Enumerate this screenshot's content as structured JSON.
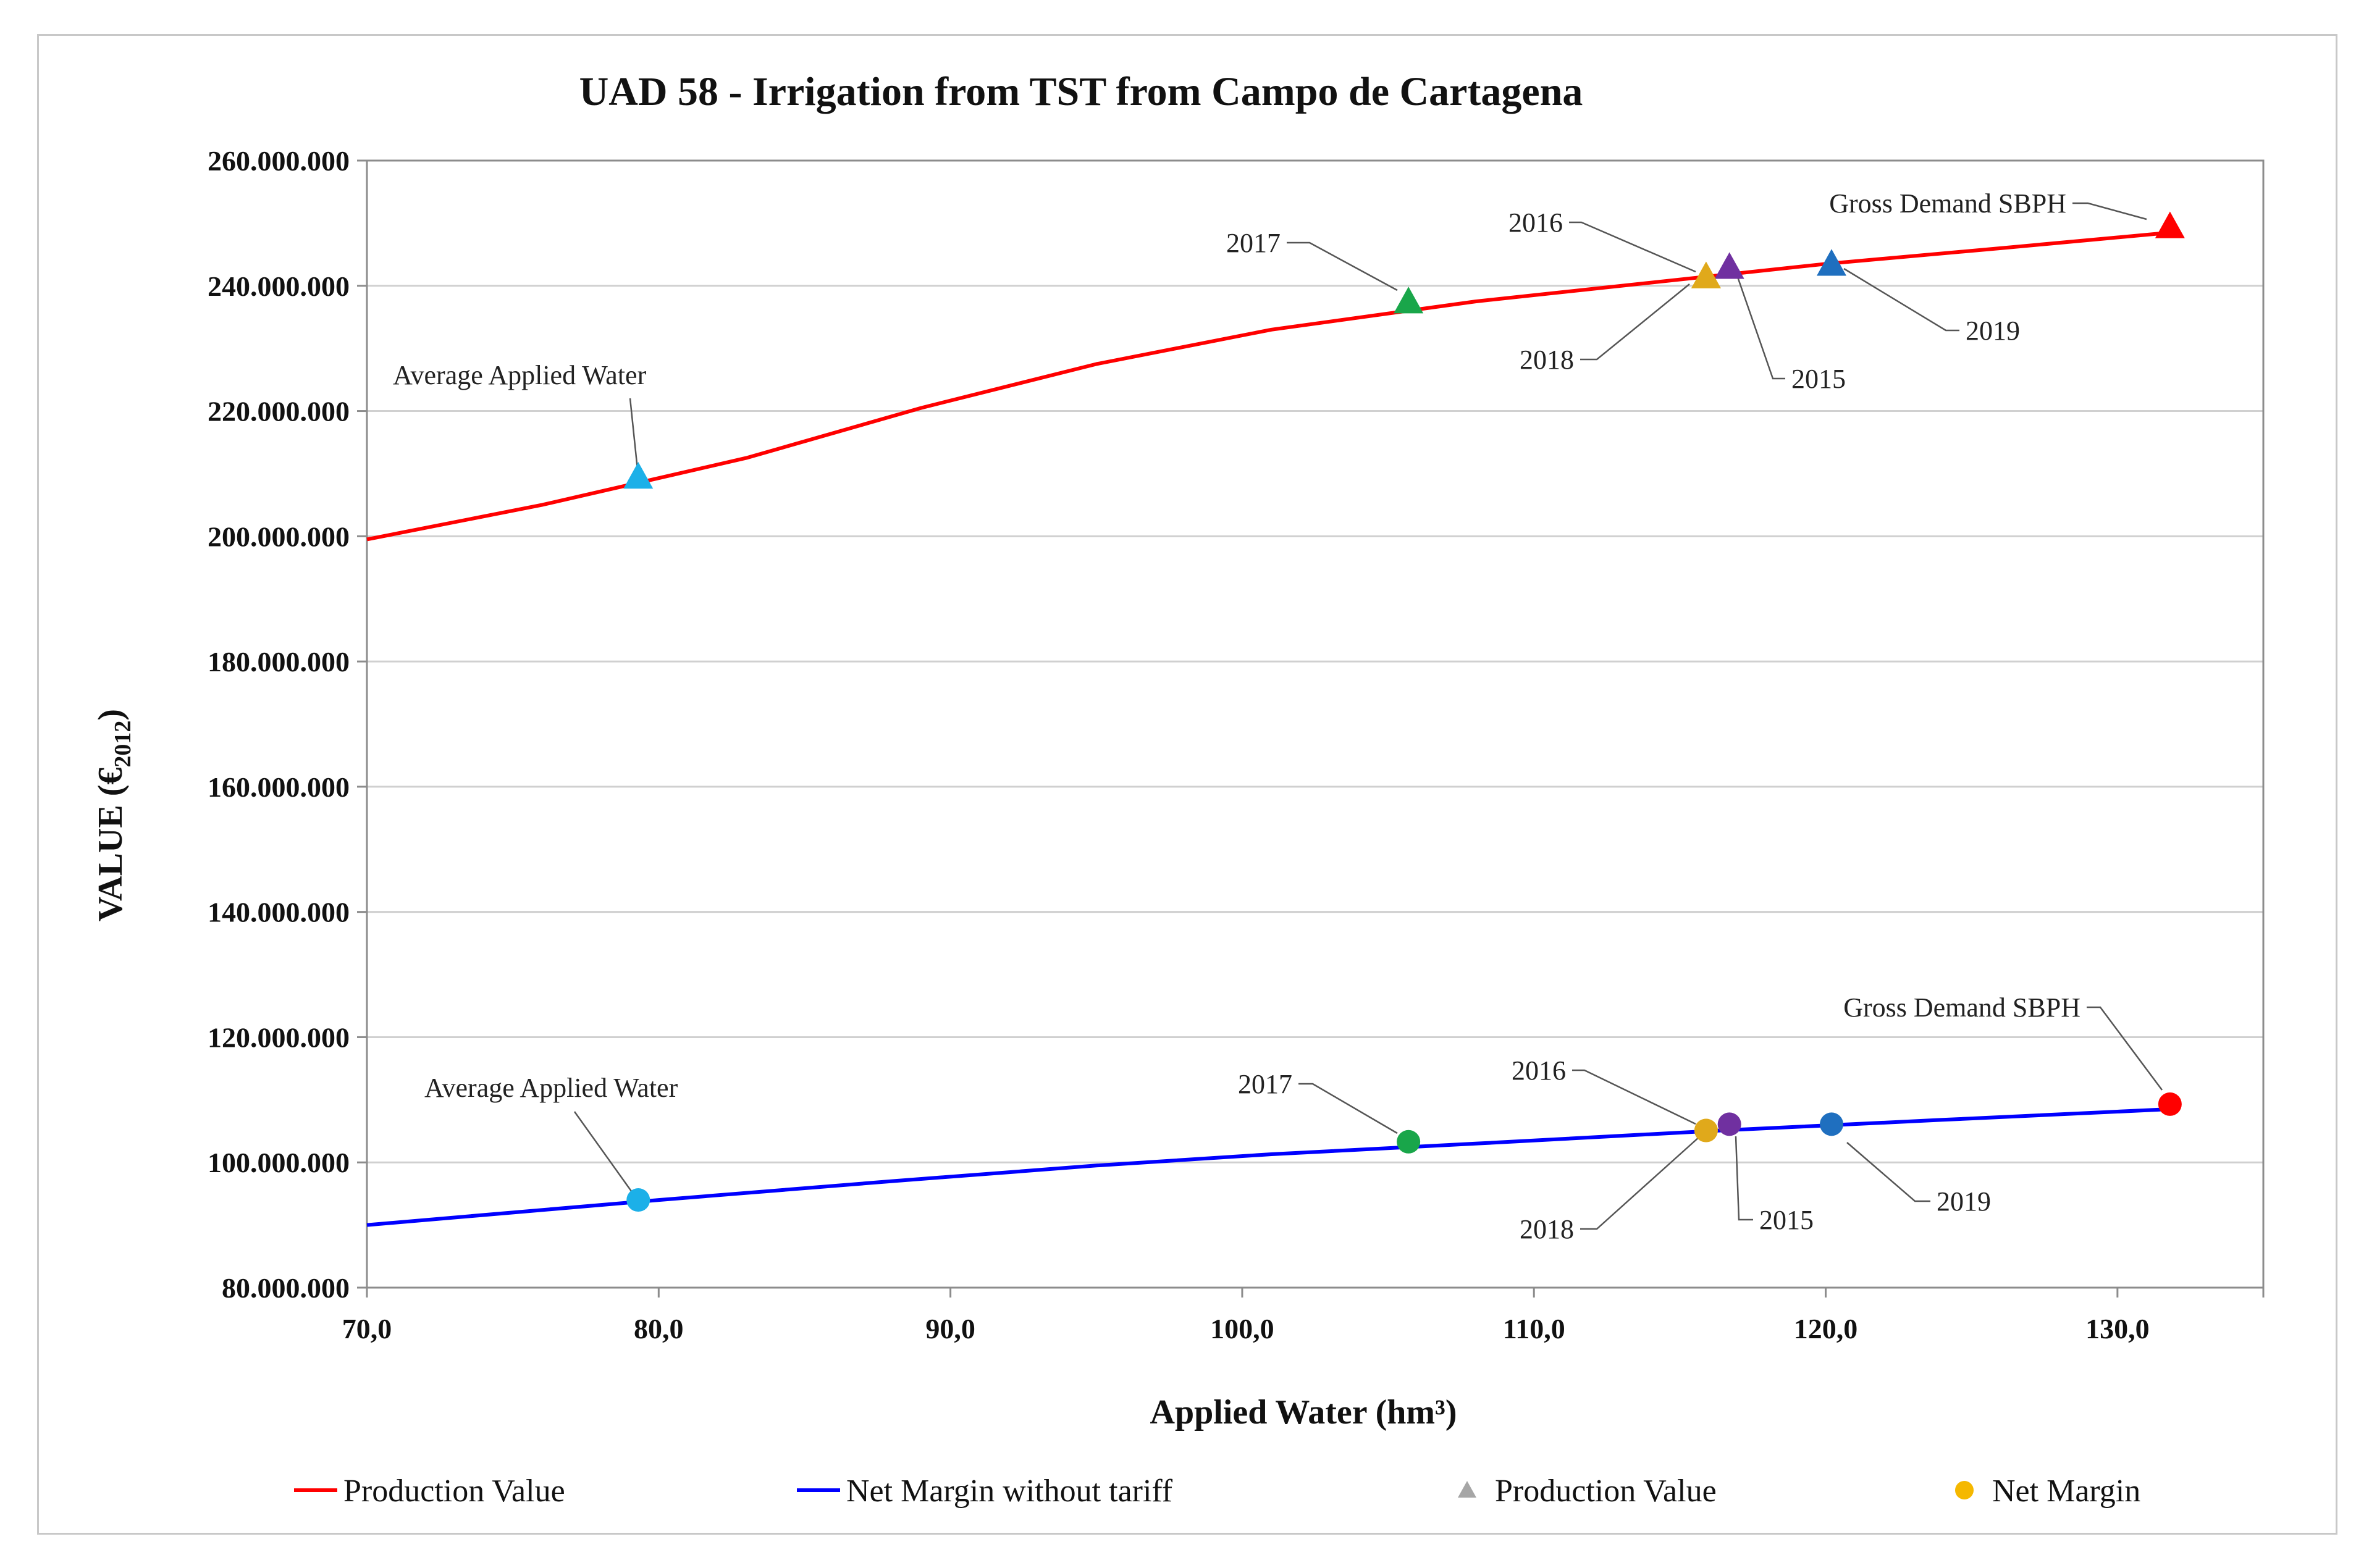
{
  "chart_data": {
    "type": "line",
    "title": "UAD 58 - Irrigation from TST from Campo de Cartagena",
    "xlabel": "Applied Water (hm³)",
    "ylabel": "VALUE (€",
    "ylabel_sub": "2012",
    "ylabel_close": ")",
    "xlim": [
      70,
      135
    ],
    "ylim": [
      80000000,
      260000000
    ],
    "x_ticks": [
      70,
      80,
      90,
      100,
      110,
      120,
      130
    ],
    "x_tick_labels": [
      "70,0",
      "80,0",
      "90,0",
      "100,0",
      "110,0",
      "120,0",
      "130,0"
    ],
    "y_ticks": [
      80000000,
      100000000,
      120000000,
      140000000,
      160000000,
      180000000,
      200000000,
      220000000,
      240000000,
      260000000
    ],
    "y_tick_labels": [
      "80.000.000",
      "100.000.000",
      "120.000.000",
      "140.000.000",
      "160.000.000",
      "180.000.000",
      "200.000.000",
      "220.000.000",
      "240.000.000",
      "260.000.000"
    ],
    "grid": true,
    "series": [
      {
        "name": "Production Value",
        "kind": "line",
        "color": "#ff0000",
        "x": [
          70,
          76,
          83,
          89,
          95,
          101,
          108,
          114,
          120,
          126,
          131.8
        ],
        "y": [
          199500000,
          205000000,
          212500000,
          220500000,
          227500000,
          233000000,
          237500000,
          240500000,
          243500000,
          246000000,
          248500000
        ]
      },
      {
        "name": "Net Margin without tariff",
        "kind": "line",
        "color": "#0000ff",
        "x": [
          70,
          80,
          88,
          95,
          101,
          108,
          116,
          124,
          131.8
        ],
        "y": [
          90000000,
          94000000,
          97000000,
          99500000,
          101300000,
          103000000,
          105000000,
          106800000,
          108500000
        ]
      }
    ],
    "production_points": [
      {
        "label": "Average Applied  Water",
        "x": 79.3,
        "y": 209500000,
        "color": "#1cb0e8"
      },
      {
        "label": "2017",
        "x": 105.7,
        "y": 237500000,
        "color": "#19a64a"
      },
      {
        "label": "2016",
        "x": 115.9,
        "y": 241500000,
        "color": "#e0a91b"
      },
      {
        "label": "2018",
        "x": 115.9,
        "y": 241500000,
        "color": "#f5c211"
      },
      {
        "label": "2015",
        "x": 116.7,
        "y": 243000000,
        "color": "#7030a0"
      },
      {
        "label": "2019",
        "x": 120.2,
        "y": 243500000,
        "color": "#1f6fbf"
      },
      {
        "label": "Gross Demand SBPH",
        "x": 131.8,
        "y": 249500000,
        "color": "#ff0000"
      }
    ],
    "margin_points": [
      {
        "label": "Average Applied  Water",
        "x": 79.3,
        "y": 94000000,
        "color": "#1cb0e8"
      },
      {
        "label": "2017",
        "x": 105.7,
        "y": 103300000,
        "color": "#19a64a"
      },
      {
        "label": "2016",
        "x": 115.9,
        "y": 105100000,
        "color": "#e0a91b"
      },
      {
        "label": "2018",
        "x": 115.9,
        "y": 105100000,
        "color": "#f5c211"
      },
      {
        "label": "2015",
        "x": 116.7,
        "y": 106100000,
        "color": "#7030a0"
      },
      {
        "label": "2019",
        "x": 120.2,
        "y": 106100000,
        "color": "#1f6fbf"
      },
      {
        "label": "Gross Demand SBPH",
        "x": 131.8,
        "y": 109300000,
        "color": "#ff0000"
      }
    ],
    "legend": [
      {
        "label": "Production Value",
        "kind": "line",
        "color": "#ff0000"
      },
      {
        "label": "Net Margin without tariff",
        "kind": "line",
        "color": "#0000ff"
      },
      {
        "label": "Production Value",
        "kind": "triangle",
        "color": "#a6a6a6"
      },
      {
        "label": "Net Margin",
        "kind": "circle",
        "color": "#f5b800"
      }
    ],
    "legend_position": "bottom"
  }
}
